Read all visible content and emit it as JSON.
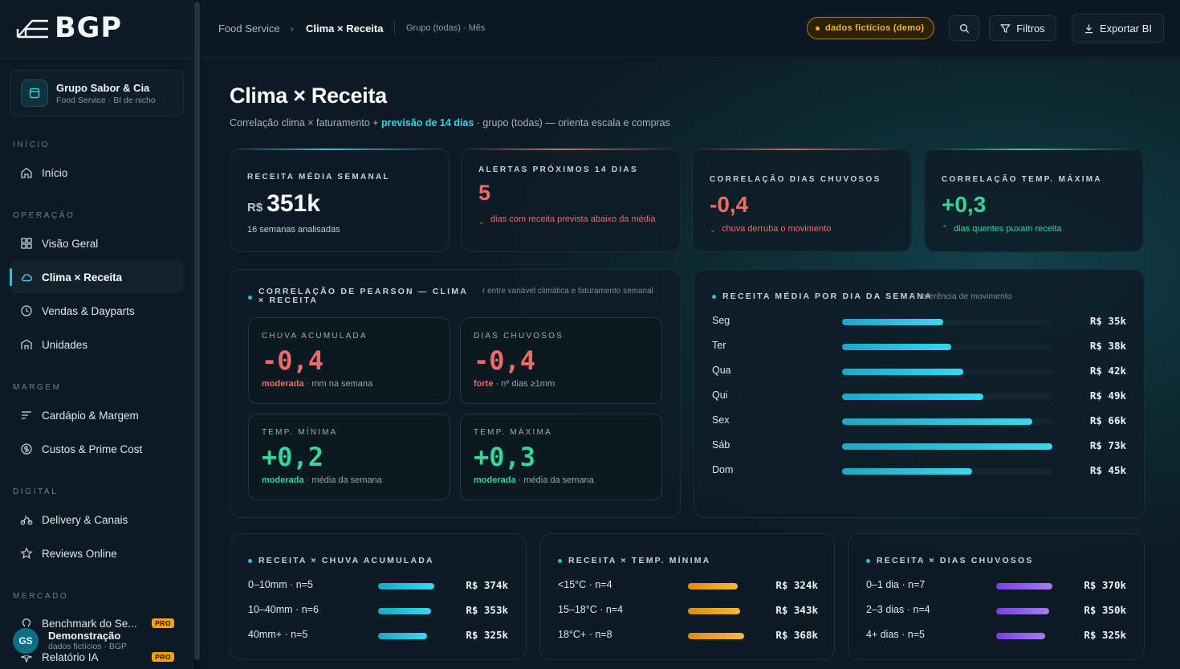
{
  "brand": {
    "name": "BGP"
  },
  "org": {
    "name": "Grupo Sabor & Cia",
    "sub": "Food Service · BI de nicho"
  },
  "sidebar": {
    "sections": [
      {
        "label": "INÍCIO",
        "items": [
          {
            "label": "Início",
            "icon": "home-icon"
          }
        ]
      },
      {
        "label": "OPERAÇÃO",
        "items": [
          {
            "label": "Visão Geral",
            "icon": "grid-icon"
          },
          {
            "label": "Clima × Receita",
            "icon": "cloud-icon",
            "active": true
          },
          {
            "label": "Vendas & Dayparts",
            "icon": "clock-icon"
          },
          {
            "label": "Unidades",
            "icon": "store-icon"
          }
        ]
      },
      {
        "label": "MARGEM",
        "items": [
          {
            "label": "Cardápio & Margem",
            "icon": "menu-list-icon"
          },
          {
            "label": "Custos & Prime Cost",
            "icon": "coin-icon"
          }
        ]
      },
      {
        "label": "DIGITAL",
        "items": [
          {
            "label": "Delivery & Canais",
            "icon": "bike-icon"
          },
          {
            "label": "Reviews Online",
            "icon": "star-icon"
          }
        ]
      },
      {
        "label": "MERCADO",
        "items": [
          {
            "label": "Benchmark do Se...",
            "icon": "bulb-icon",
            "pro": "PRO"
          },
          {
            "label": "Relatório IA",
            "icon": "sparkle-icon",
            "pro": "PRO"
          }
        ]
      }
    ]
  },
  "user": {
    "initials": "GS",
    "name": "Demonstração",
    "sub": "dados fictícios · BGP"
  },
  "topbar": {
    "crumb_root": "Food Service",
    "crumb_current": "Clima × Receita",
    "crumb_context": "Grupo (todas) · Mês",
    "demo_badge": "dados fictícios (demo)",
    "filters_label": "Filtros",
    "export_label": "Exportar BI"
  },
  "page": {
    "title": "Clima × Receita",
    "subtitle_pre": "Correlação clima × faturamento + ",
    "subtitle_highlight": "previsão de 14 dias",
    "subtitle_post": " · grupo (todas) — orienta escala e compras"
  },
  "kpis": [
    {
      "label": "RECEITA MÉDIA SEMANAL",
      "prefix": "R$",
      "value": "351k",
      "note": "16 semanas analisadas",
      "accent": "#2fc3e0"
    },
    {
      "label": "ALERTAS PRÓXIMOS 14 DIAS",
      "value": "5",
      "note": "dias com receita prevista abaixo da média",
      "accent": "#e35d5d"
    },
    {
      "label": "CORRELAÇÃO DIAS CHUVOSOS",
      "value": "-0,4",
      "note": "chuva derruba o movimento",
      "accent": "#e35d5d"
    },
    {
      "label": "CORRELAÇÃO TEMP. MÁXIMA",
      "value": "+0,3",
      "note": "dias quentes puxam receita",
      "accent": "#2ed18f"
    }
  ],
  "pearson": {
    "title": "CORRELAÇÃO DE PEARSON — CLIMA × RECEITA",
    "hint": "r entre variável climática e faturamento semanal",
    "cells": [
      {
        "label": "CHUVA ACUMULADA",
        "value": "-0,4",
        "strength": "moderada",
        "note": " · mm na semana",
        "color": "#ef6a6a"
      },
      {
        "label": "DIAS CHUVOSOS",
        "value": "-0,4",
        "strength": "forte",
        "note": " · nº dias ≥1mm",
        "color": "#ef6a6a"
      },
      {
        "label": "TEMP. MÍNIMA",
        "value": "+0,2",
        "strength": "moderada",
        "note": " · média da semana",
        "color": "#36d69a"
      },
      {
        "label": "TEMP. MÁXIMA",
        "value": "+0,3",
        "strength": "moderada",
        "note": " · média da semana",
        "color": "#36d69a"
      }
    ]
  },
  "weekday": {
    "title": "RECEITA MÉDIA POR DIA DA SEMANA",
    "hint": "referência de movimento",
    "max": 73,
    "rows": [
      {
        "label": "Seg",
        "value": 35,
        "display": "R$ 35k"
      },
      {
        "label": "Ter",
        "value": 38,
        "display": "R$ 38k"
      },
      {
        "label": "Qua",
        "value": 42,
        "display": "R$ 42k"
      },
      {
        "label": "Qui",
        "value": 49,
        "display": "R$ 49k"
      },
      {
        "label": "Sex",
        "value": 66,
        "display": "R$ 66k"
      },
      {
        "label": "Sáb",
        "value": 73,
        "display": "R$ 73k"
      },
      {
        "label": "Dom",
        "value": 45,
        "display": "R$ 45k"
      }
    ]
  },
  "buckets": [
    {
      "title": "RECEITA × CHUVA ACUMULADA",
      "color_from": "#1aa8c8",
      "color_to": "#37d8f2",
      "max": 374,
      "rows": [
        {
          "label": "0–10mm · n=5",
          "value": 374,
          "display": "R$ 374k"
        },
        {
          "label": "10–40mm · n=6",
          "value": 353,
          "display": "R$ 353k"
        },
        {
          "label": "40mm+ · n=5",
          "value": 325,
          "display": "R$ 325k"
        }
      ]
    },
    {
      "title": "RECEITA × TEMP. MÍNIMA",
      "color_from": "#e08a12",
      "color_to": "#f6b93b",
      "max": 368,
      "rows": [
        {
          "label": "<15°C · n=4",
          "value": 324,
          "display": "R$ 324k"
        },
        {
          "label": "15–18°C · n=4",
          "value": 343,
          "display": "R$ 343k"
        },
        {
          "label": "18°C+ · n=8",
          "value": 368,
          "display": "R$ 368k"
        }
      ]
    },
    {
      "title": "RECEITA × DIAS CHUVOSOS",
      "color_from": "#7b3fe4",
      "color_to": "#a67df5",
      "max": 370,
      "rows": [
        {
          "label": "0–1 dia · n=7",
          "value": 370,
          "display": "R$ 370k"
        },
        {
          "label": "2–3 dias · n=4",
          "value": 350,
          "display": "R$ 350k"
        },
        {
          "label": "4+ dias · n=5",
          "value": 325,
          "display": "R$ 325k"
        }
      ]
    }
  ]
}
